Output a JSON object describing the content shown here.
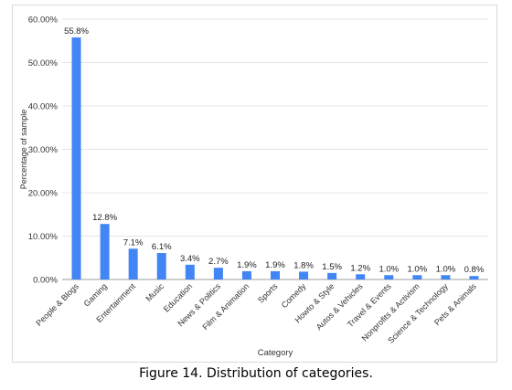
{
  "caption": "Figure 14. Distribution of categories.",
  "chart_data": {
    "type": "bar",
    "title": "",
    "xlabel": "Category",
    "ylabel": "Percentage of sample",
    "ylim": [
      0,
      60
    ],
    "yticks": [
      "0.00%",
      "10.00%",
      "20.00%",
      "30.00%",
      "40.00%",
      "50.00%",
      "60.00%"
    ],
    "grid": true,
    "bar_color": "#4285f4",
    "categories": [
      "People & Blogs",
      "Gaming",
      "Entertainment",
      "Music",
      "Education",
      "News & Politics",
      "Film & Animation",
      "Sports",
      "Comedy",
      "Howto & Style",
      "Autos & Vehicles",
      "Travel & Events",
      "Nonprofits & Activism",
      "Science & Technology",
      "Pets & Animals"
    ],
    "values": [
      55.8,
      12.8,
      7.1,
      6.1,
      3.4,
      2.7,
      1.9,
      1.9,
      1.8,
      1.5,
      1.2,
      1.0,
      1.0,
      1.0,
      0.8
    ],
    "data_labels": [
      "55.8%",
      "12.8%",
      "7.1%",
      "6.1%",
      "3.4%",
      "2.7%",
      "1.9%",
      "1.9%",
      "1.8%",
      "1.5%",
      "1.2%",
      "1.0%",
      "1.0%",
      "1.0%",
      "0.8%"
    ]
  }
}
